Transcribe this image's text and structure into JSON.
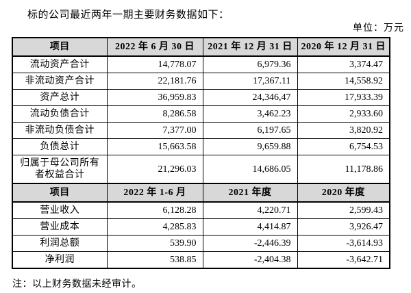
{
  "page": {
    "title": "标的公司最近两年一期主要财务数据如下：",
    "unit_label": "单位：万元",
    "note": "注：以上财务数据未经审计。"
  },
  "balance_table": {
    "headers": [
      "项目",
      "2022 年 6 月 30 日",
      "2021 年 12 月 31 日",
      "2020 年 12 月 31 日"
    ],
    "rows": [
      {
        "item": "流动资产合计",
        "c1": "14,778.07",
        "c2": "6,979.36",
        "c3": "3,374.47"
      },
      {
        "item": "非流动资产合计",
        "c1": "22,181.76",
        "c2": "17,367.11",
        "c3": "14,558.92"
      },
      {
        "item": "资产总计",
        "c1": "36,959.83",
        "c2": "24,346,47",
        "c3": "17,933.39"
      },
      {
        "item": "流动负债合计",
        "c1": "8,286.58",
        "c2": "3,462.23",
        "c3": "2,933.60"
      },
      {
        "item": "非流动负债合计",
        "c1": "7,377.00",
        "c2": "6,197.65",
        "c3": "3,820.92"
      },
      {
        "item": "负债总计",
        "c1": "15,663.58",
        "c2": "9,659.88",
        "c3": "6,754.53"
      },
      {
        "item": "归属于母公司所有者权益合计",
        "c1": "21,296.03",
        "c2": "14,686.05",
        "c3": "11,178.86"
      }
    ]
  },
  "income_table": {
    "headers": [
      "项目",
      "2022 年 1-6 月",
      "2021 年度",
      "2020 年度"
    ],
    "rows": [
      {
        "item": "营业收入",
        "c1": "6,128.28",
        "c2": "4,220.71",
        "c3": "2,599.43"
      },
      {
        "item": "营业成本",
        "c1": "4,285.83",
        "c2": "4,414.87",
        "c3": "3,926.47"
      },
      {
        "item": "利润总额",
        "c1": "539.90",
        "c2": "-2,446.39",
        "c3": "-3,614.93"
      },
      {
        "item": "净利润",
        "c1": "538.85",
        "c2": "-2,404.38",
        "c3": "-3,642.71"
      }
    ]
  }
}
